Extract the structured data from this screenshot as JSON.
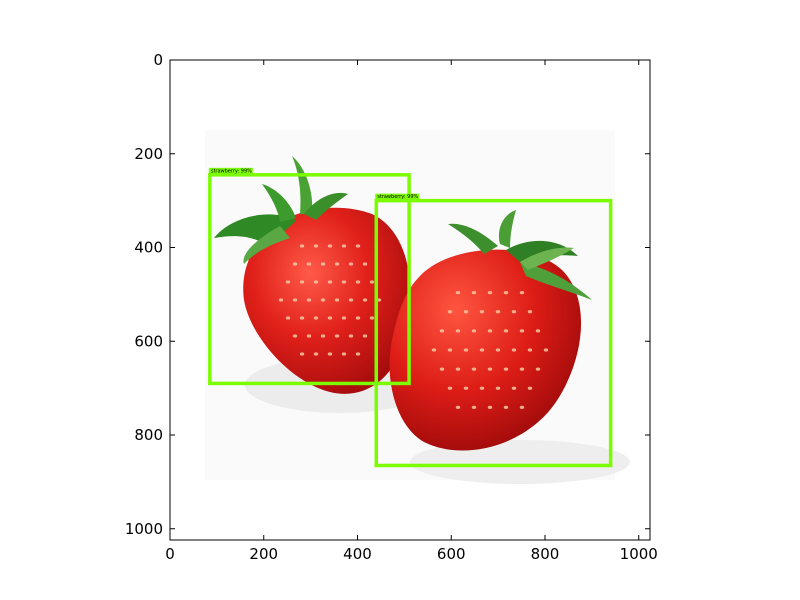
{
  "chart_data": {
    "type": "image",
    "title": "",
    "xlabel": "",
    "ylabel": "",
    "xlim": [
      0,
      1024
    ],
    "ylim": [
      1024,
      0
    ],
    "x_ticks": [
      0,
      200,
      400,
      600,
      800,
      1000
    ],
    "y_ticks": [
      0,
      200,
      400,
      600,
      800,
      1000
    ],
    "x_tick_labels": [
      "0",
      "200",
      "400",
      "600",
      "800",
      "1000"
    ],
    "y_tick_labels": [
      "0",
      "200",
      "400",
      "600",
      "800",
      "1000"
    ],
    "grid": false,
    "image_content": "two red strawberries with green leaves on white background",
    "detections": [
      {
        "label": "strawberry: 99%",
        "xmin": 85,
        "ymin": 245,
        "xmax": 510,
        "ymax": 690
      },
      {
        "label": "strawberry: 99%",
        "xmin": 440,
        "ymin": 300,
        "xmax": 940,
        "ymax": 865
      }
    ],
    "box_color": "#7cfc00"
  }
}
